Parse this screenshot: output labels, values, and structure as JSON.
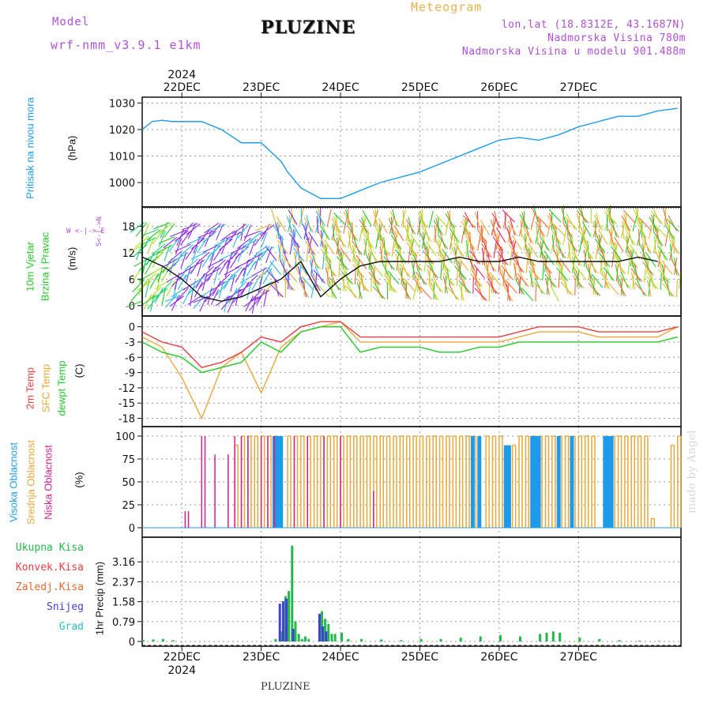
{
  "header": {
    "model_label": "Model",
    "model_name": "wrf-nmm_v3.9.1  e1km",
    "title": "PLUZINE",
    "subtitle": "Meteogram",
    "coords": "lon,lat (18.8312E, 43.1687N)",
    "altitude": "Nadmorska Visina 780m",
    "model_altitude": "Nadmorska Visina u modelu 901.488m"
  },
  "footer": {
    "station": "PLUZINE",
    "credit": "made by Angel"
  },
  "colors": {
    "pressure": "#1e9be8",
    "temp2m": "#e84040",
    "sfc_temp": "#e8a838",
    "dewpt": "#22c82a",
    "high_cloud": "#1e9be8",
    "mid_cloud": "#e8a838",
    "low_cloud": "#d0208a",
    "total_precip": "#22b84a",
    "snow": "#4040d8",
    "wind_label": "#22c82a",
    "wind_dir_label": "#b04fd8"
  },
  "top_axis": {
    "year": "2024",
    "dates": [
      "22DEC",
      "23DEC",
      "24DEC",
      "25DEC",
      "26DEC",
      "27DEC"
    ]
  },
  "bottom_axis": {
    "year": "2024",
    "dates": [
      "22DEC",
      "23DEC",
      "24DEC",
      "25DEC",
      "26DEC",
      "27DEC"
    ]
  },
  "panels": {
    "pressure": {
      "label": "Pritisak na nivou mora",
      "unit": "(hPa)"
    },
    "wind": {
      "label1": "10m Vjetar",
      "label2": "Brzina i Pravac",
      "unit": "(m/s)",
      "compass": "W <-|-> E",
      "compass_v": "S<-|->N"
    },
    "temp": {
      "label1": "2m Temp",
      "label2": "SFC Temp",
      "label3": "dewpt Temp",
      "unit": "(C)"
    },
    "cloud": {
      "label1": "Visoka Oblacnost",
      "label2": "Srednja Oblacnost",
      "label3": "Niska Oblacnost",
      "unit": "(%)"
    },
    "precip": {
      "unit": "1hr Precip (mm)",
      "legend": [
        "Ukupna Kisa",
        "Konvek.Kisa",
        "Zaledj.Kisa",
        "Snijeg",
        "Grad"
      ],
      "legend_colors": [
        "#22b84a",
        "#e84040",
        "#e86a30",
        "#4040d8",
        "#30c0c0"
      ]
    }
  },
  "chart_data": [
    {
      "type": "line",
      "title": "Pritisak na nivou mora",
      "ylabel": "(hPa)",
      "ylim": [
        992,
        1031
      ],
      "yticks": [
        1000,
        1010,
        1020,
        1030
      ],
      "x_unit": "hours from 2024-12-21 12:00",
      "series": [
        {
          "name": "Pritisak na nivou mora",
          "x": [
            0,
            3,
            6,
            9,
            12,
            18,
            24,
            30,
            36,
            42,
            44,
            48,
            54,
            60,
            66,
            72,
            78,
            84,
            90,
            96,
            102,
            108,
            114,
            120,
            126,
            132,
            138,
            144,
            150,
            156,
            162
          ],
          "y": [
            1020,
            1023,
            1023.5,
            1023,
            1023,
            1023,
            1020,
            1015,
            1015,
            1008,
            1004,
            998,
            994,
            994,
            997,
            1000,
            1002,
            1004,
            1007,
            1010,
            1013,
            1016,
            1017,
            1016,
            1018,
            1021,
            1023,
            1025,
            1025,
            1027,
            1028
          ]
        }
      ]
    },
    {
      "type": "line",
      "title": "10m Vjetar Brzina i Pravac",
      "ylabel": "(m/s)",
      "ylim": [
        -2,
        22
      ],
      "yticks": [
        0,
        6,
        12,
        18
      ],
      "x_unit": "hours from 2024-12-21 12:00",
      "series": [
        {
          "name": "wind speed",
          "x": [
            0,
            6,
            12,
            18,
            24,
            30,
            36,
            42,
            48,
            54,
            60,
            66,
            72,
            78,
            84,
            90,
            96,
            102,
            108,
            114,
            120,
            126,
            132,
            138,
            144,
            150,
            156
          ],
          "y": [
            11,
            9,
            6,
            2,
            1,
            2,
            4,
            6,
            10,
            2,
            6,
            9,
            10,
            10,
            10,
            10,
            11,
            10,
            10,
            11,
            10,
            10,
            10,
            10,
            10,
            11,
            10
          ]
        }
      ]
    },
    {
      "type": "line",
      "title": "2m Temp / SFC Temp / dewpt Temp",
      "ylabel": "(C)",
      "ylim": [
        -19,
        1.5
      ],
      "yticks": [
        0,
        -3,
        -6,
        -9,
        -12,
        -15,
        -18
      ],
      "x_unit": "hours from 2024-12-21 12:00",
      "series": [
        {
          "name": "2m Temp",
          "x": [
            0,
            6,
            12,
            18,
            24,
            30,
            36,
            42,
            48,
            54,
            60,
            66,
            72,
            78,
            84,
            90,
            96,
            102,
            108,
            114,
            120,
            126,
            132,
            138,
            144,
            150,
            156,
            162
          ],
          "y": [
            -1,
            -3,
            -4,
            -8,
            -7,
            -5,
            -2,
            -3,
            0,
            1,
            1,
            -2,
            -2,
            -2,
            -2,
            -2,
            -2,
            -2,
            -2,
            -1,
            0,
            0,
            0,
            -1,
            -1,
            -1,
            -1,
            0
          ]
        },
        {
          "name": "SFC Temp",
          "x": [
            0,
            6,
            12,
            18,
            24,
            30,
            36,
            42,
            48,
            54,
            60,
            66,
            72,
            78,
            84,
            90,
            96,
            102,
            108,
            114,
            120,
            126,
            132,
            138,
            144,
            150,
            156,
            162
          ],
          "y": [
            -2,
            -4,
            -10,
            -18,
            -8,
            -5,
            -13,
            -4,
            -1,
            0,
            1,
            -3,
            -3,
            -3,
            -3,
            -3,
            -3,
            -3,
            -3,
            -2,
            -1,
            -1,
            -1,
            -2,
            -2,
            -2,
            -2,
            0
          ]
        },
        {
          "name": "dewpt Temp",
          "x": [
            0,
            6,
            12,
            18,
            24,
            30,
            36,
            42,
            48,
            54,
            60,
            66,
            72,
            78,
            84,
            90,
            96,
            102,
            108,
            114,
            120,
            126,
            132,
            138,
            144,
            150,
            156,
            162
          ],
          "y": [
            -3,
            -5,
            -6,
            -9,
            -8,
            -7,
            -3,
            -5,
            -1,
            0,
            0,
            -5,
            -4,
            -4,
            -4,
            -5,
            -5,
            -4,
            -4,
            -3,
            -3,
            -3,
            -3,
            -3,
            -3,
            -3,
            -3,
            -2
          ]
        }
      ]
    },
    {
      "type": "bar",
      "title": "Visoka / Srednja / Niska Oblacnost",
      "ylabel": "(%)",
      "ylim": [
        0,
        100
      ],
      "yticks": [
        0,
        25,
        50,
        75,
        100
      ],
      "x_unit": "hours from 2024-12-21 12:00",
      "series": [
        {
          "name": "Visoka Oblacnost",
          "x": [
            40,
            41,
            42,
            100,
            102,
            110,
            111,
            118,
            119,
            120,
            126,
            130,
            140,
            141,
            142
          ],
          "y": [
            100,
            100,
            100,
            100,
            100,
            90,
            90,
            100,
            100,
            100,
            100,
            100,
            100,
            100,
            100
          ]
        },
        {
          "name": "Srednja Oblacnost",
          "x": [
            28,
            30,
            32,
            34,
            36,
            38,
            40,
            44,
            46,
            48,
            50,
            52,
            54,
            56,
            58,
            60,
            62,
            64,
            66,
            68,
            70,
            72,
            74,
            76,
            78,
            80,
            82,
            84,
            86,
            88,
            90,
            92,
            94,
            96,
            98,
            100,
            104,
            106,
            108,
            112,
            114,
            116,
            118,
            120,
            122,
            124,
            126,
            128,
            130,
            132,
            134,
            136,
            140,
            142,
            144,
            146,
            148,
            150,
            152,
            154,
            160,
            162
          ],
          "y": [
            90,
            100,
            100,
            100,
            100,
            100,
            100,
            100,
            100,
            100,
            100,
            100,
            100,
            100,
            100,
            100,
            100,
            100,
            100,
            100,
            100,
            100,
            100,
            100,
            100,
            100,
            100,
            100,
            100,
            100,
            100,
            100,
            100,
            100,
            100,
            100,
            100,
            100,
            100,
            90,
            100,
            100,
            100,
            100,
            100,
            100,
            100,
            100,
            100,
            100,
            100,
            100,
            100,
            100,
            100,
            100,
            100,
            100,
            100,
            10,
            90,
            100
          ]
        },
        {
          "name": "Niska Oblacnost",
          "x": [
            13,
            14,
            18,
            19,
            22,
            26,
            28,
            30,
            32,
            36,
            38,
            40,
            46,
            50,
            55,
            60,
            70
          ],
          "y": [
            18,
            18,
            100,
            100,
            80,
            80,
            100,
            100,
            100,
            100,
            100,
            100,
            100,
            100,
            100,
            100,
            40
          ]
        }
      ]
    },
    {
      "type": "bar",
      "title": "1hr Precip (mm)",
      "ylabel": "1hr Precip (mm)",
      "ylim": [
        0,
        3.95
      ],
      "yticks": [
        0,
        0.79,
        1.58,
        2.37,
        3.16
      ],
      "x_unit": "hours from 2024-12-21 12:00",
      "series": [
        {
          "name": "Ukupna Kisa",
          "x": [
            0,
            3,
            6,
            9,
            40,
            42,
            43,
            44,
            45,
            46,
            47,
            48,
            49,
            50,
            54,
            55,
            56,
            57,
            58,
            60,
            62,
            66,
            72,
            78,
            84,
            90,
            96,
            102,
            108,
            114,
            120,
            122,
            124,
            126,
            132,
            138,
            144,
            150,
            156
          ],
          "y": [
            0.05,
            0.08,
            0.1,
            0.05,
            0.1,
            0.4,
            1.8,
            2.0,
            3.8,
            0.8,
            0.3,
            0.1,
            0.2,
            0.1,
            1.2,
            0.9,
            0.7,
            0.3,
            0.3,
            0.35,
            0.1,
            0.1,
            0.08,
            0.05,
            0.1,
            0.1,
            0.15,
            0.2,
            0.25,
            0.2,
            0.3,
            0.35,
            0.4,
            0.35,
            0.15,
            0.1,
            0.05,
            0.03,
            0.02
          ]
        },
        {
          "name": "Snijeg",
          "x": [
            42,
            43,
            44,
            46,
            54,
            55,
            56
          ],
          "y": [
            1.5,
            1.6,
            1.7,
            0.5,
            1.1,
            0.6,
            0.4
          ]
        }
      ]
    }
  ]
}
